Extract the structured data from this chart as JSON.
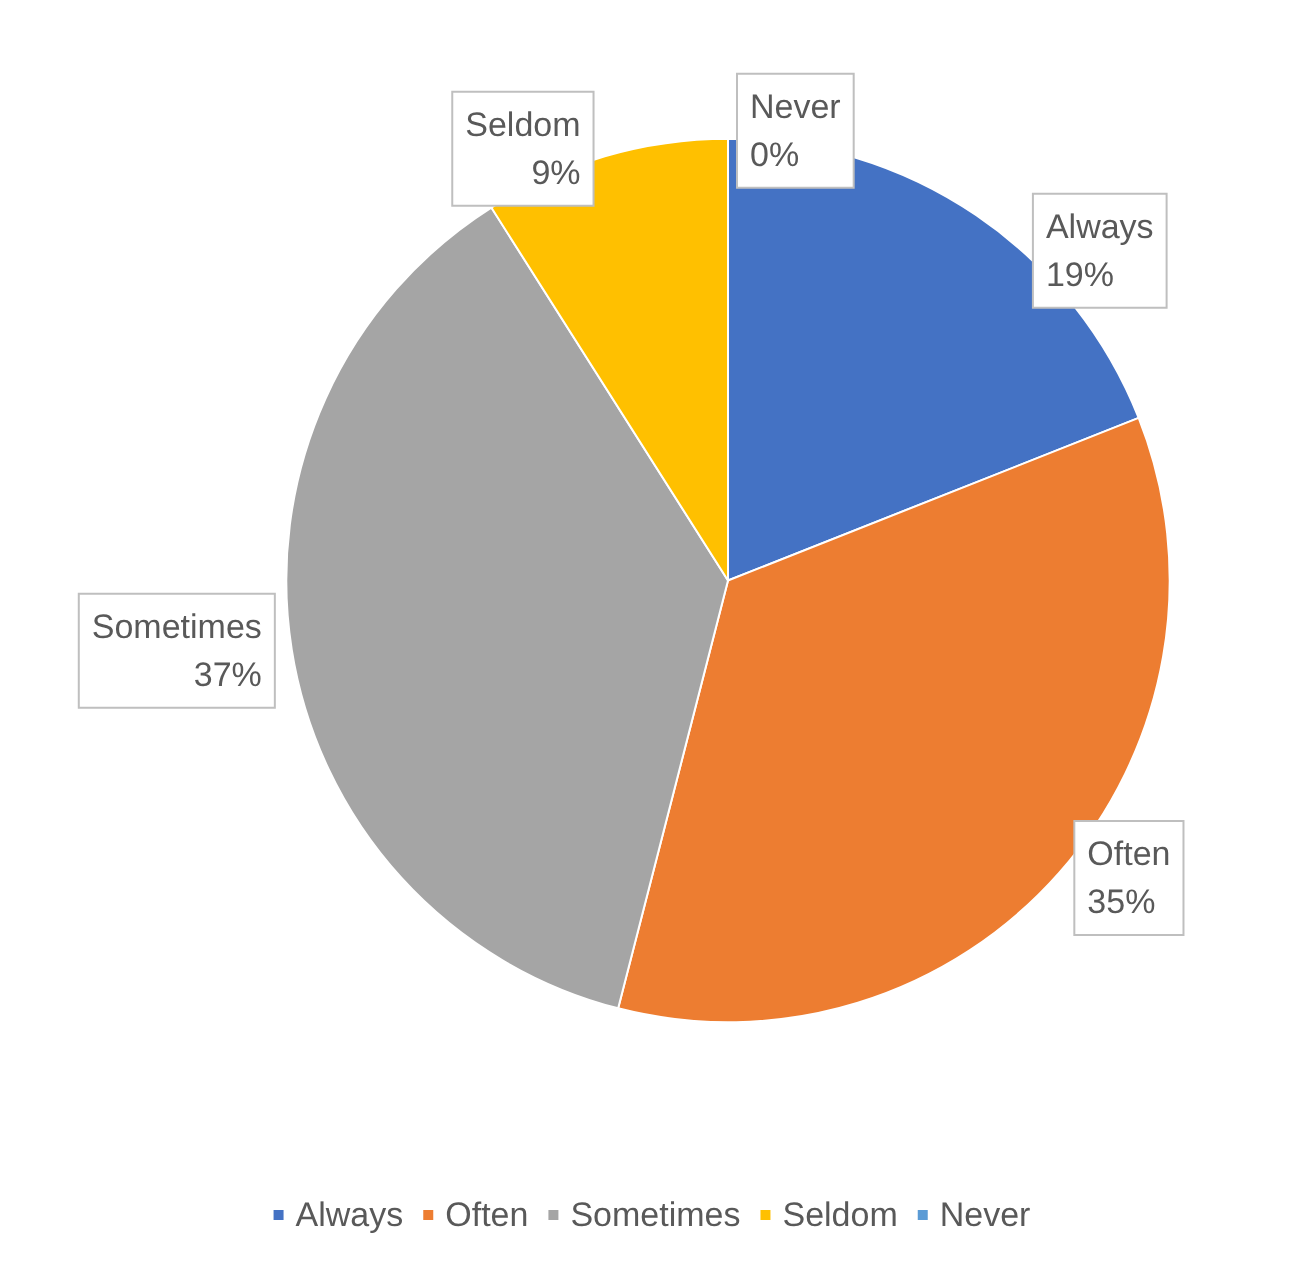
{
  "chart_data": {
    "type": "pie",
    "categories": [
      "Always",
      "Often",
      "Sometimes",
      "Seldom",
      "Never"
    ],
    "values": [
      19,
      35,
      37,
      9,
      0
    ],
    "value_labels": [
      "19%",
      "35%",
      "37%",
      "9%",
      "0%"
    ],
    "colors": [
      "#4472c4",
      "#ed7d31",
      "#a5a5a5",
      "#ffc000",
      "#5b9bd5"
    ],
    "legend": "bottom"
  }
}
